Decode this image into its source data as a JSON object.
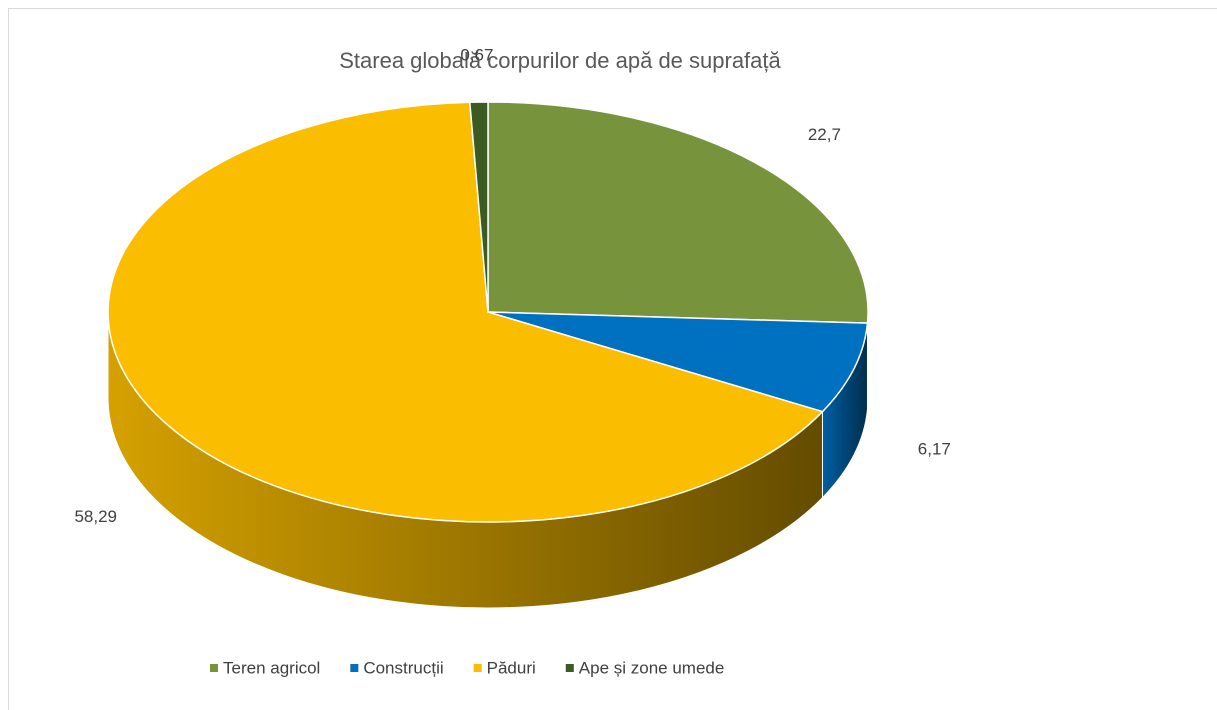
{
  "chart_data": {
    "type": "pie3d",
    "title": "Starea globală  corpurilor de apă de suprafață",
    "categories": [
      "Teren agricol",
      "Construcții",
      "Păduri",
      "Ape și zone umede"
    ],
    "values": [
      22.7,
      6.17,
      58.29,
      0.67
    ],
    "value_labels": [
      "22,7",
      "6,17",
      "58,29",
      "0,67"
    ],
    "colors": [
      "#77933c",
      "#0070c0",
      "#fbbd00",
      "#3b5b22"
    ],
    "legend": "bottom"
  }
}
